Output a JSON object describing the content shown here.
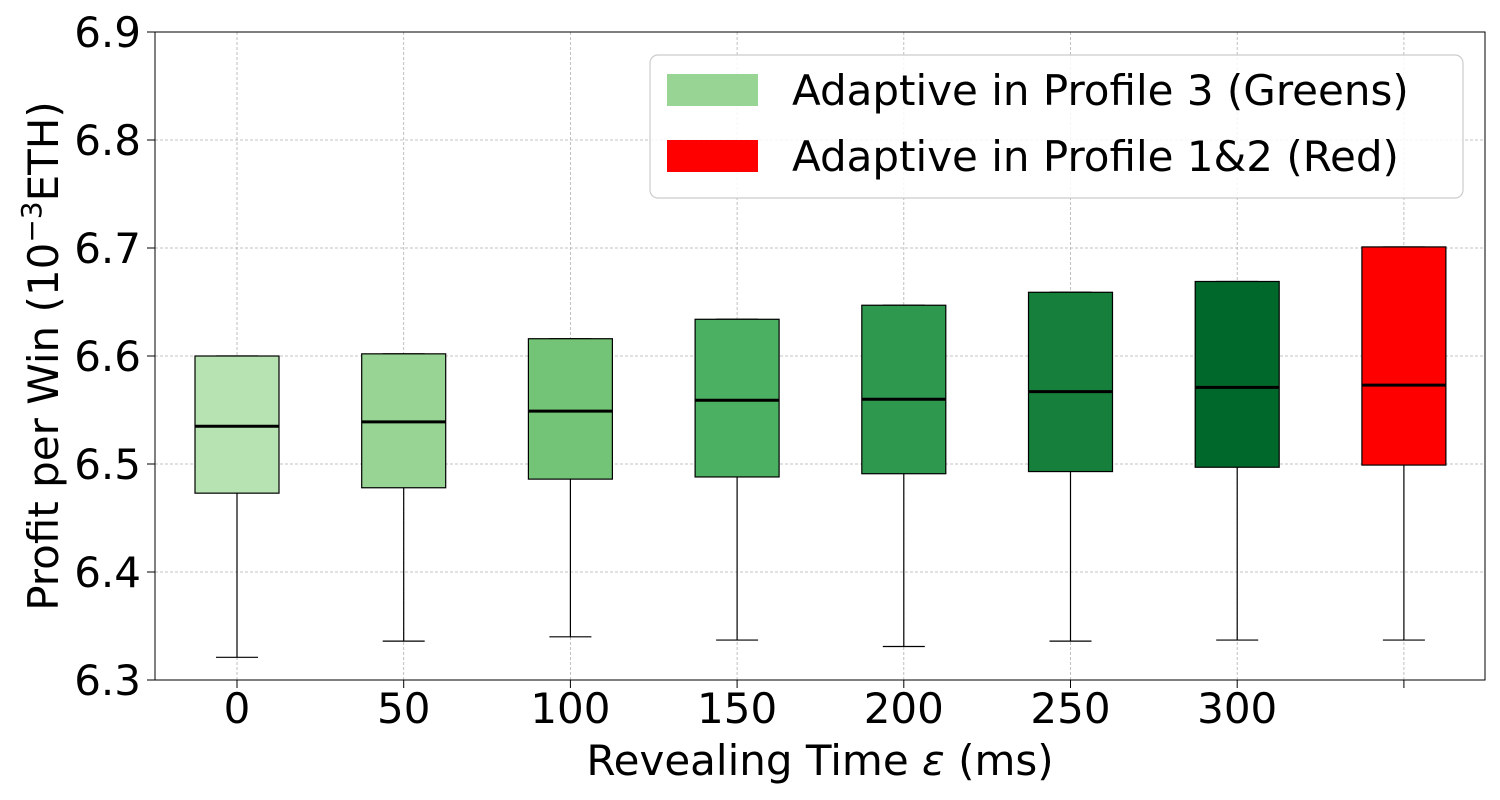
{
  "chart_data": {
    "type": "boxplot",
    "xlabel_prefix": "Revealing Time ",
    "xlabel_symbol": "ε",
    "xlabel_suffix": " (ms)",
    "ylabel_prefix": "Profit per Win (10",
    "ylabel_exponent": "−3",
    "ylabel_suffix": "ETH)",
    "ylim": [
      6.3,
      6.9
    ],
    "yticks": [
      "6.3",
      "6.4",
      "6.5",
      "6.6",
      "6.7",
      "6.8",
      "6.9"
    ],
    "grid": true,
    "legend_position": "top-right",
    "legend": [
      {
        "label": "Adaptive in Profile 3 (Greens)",
        "color": "#98d594"
      },
      {
        "label": "Adaptive in Profile 1&2 (Red)",
        "color": "#ff0000"
      }
    ],
    "boxes": [
      {
        "category": "0",
        "whisker_low": 6.321,
        "q1": 6.473,
        "median": 6.535,
        "q3": 6.6,
        "whisker_high": 6.6,
        "color": "#b7e2b1"
      },
      {
        "category": "50",
        "whisker_low": 6.336,
        "q1": 6.478,
        "median": 6.539,
        "q3": 6.602,
        "whisker_high": 6.602,
        "color": "#98d594"
      },
      {
        "category": "100",
        "whisker_low": 6.34,
        "q1": 6.486,
        "median": 6.549,
        "q3": 6.616,
        "whisker_high": 6.616,
        "color": "#73c476"
      },
      {
        "category": "150",
        "whisker_low": 6.337,
        "q1": 6.488,
        "median": 6.559,
        "q3": 6.634,
        "whisker_high": 6.634,
        "color": "#4bb062"
      },
      {
        "category": "200",
        "whisker_low": 6.331,
        "q1": 6.491,
        "median": 6.56,
        "q3": 6.647,
        "whisker_high": 6.647,
        "color": "#2f984f"
      },
      {
        "category": "250",
        "whisker_low": 6.336,
        "q1": 6.493,
        "median": 6.567,
        "q3": 6.659,
        "whisker_high": 6.659,
        "color": "#157f3b"
      },
      {
        "category": "300",
        "whisker_low": 6.337,
        "q1": 6.497,
        "median": 6.571,
        "q3": 6.669,
        "whisker_high": 6.669,
        "color": "#00682a"
      },
      {
        "category": "",
        "whisker_low": 6.337,
        "q1": 6.499,
        "median": 6.573,
        "q3": 6.701,
        "whisker_high": 6.701,
        "color": "#ff0000"
      }
    ]
  }
}
